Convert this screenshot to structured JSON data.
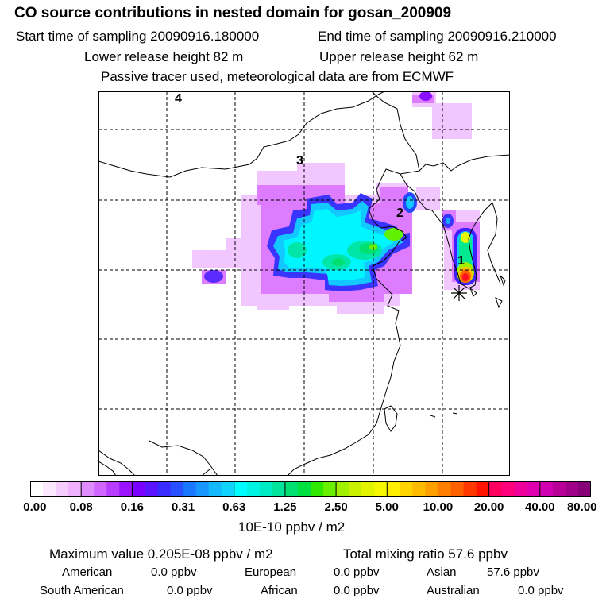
{
  "header": {
    "title": "CO  source contributions in nested domain for gosan_200909",
    "start_label": "Start time of sampling 20090916.180000",
    "end_label": "End time of sampling 20090916.210000",
    "lower_label": "Lower release height   82 m",
    "upper_label": "Upper release height   62 m",
    "note": "Passive tracer used, meteorological data are from ECMWF"
  },
  "chart_data": {
    "type": "heatmap",
    "title": "CO  source contributions in nested domain for gosan_200909",
    "colorbar": {
      "ticks": [
        "0.00",
        "0.08",
        "0.16",
        "0.31",
        "0.63",
        "1.25",
        "2.50",
        "5.00",
        "10.00",
        "20.00",
        "40.00",
        "80.00"
      ],
      "units": "10E-10 ppbv / m2",
      "colors": [
        [
          "#ffffff",
          "#fce8ff",
          "#f6ccff",
          "#eeb0ff"
        ],
        [
          "#e08cff",
          "#d066ff",
          "#b93dff",
          "#9a14ff"
        ],
        [
          "#7a00ff",
          "#5a14ff",
          "#3a2cff",
          "#2850ff"
        ],
        [
          "#1a78ff",
          "#1898ff",
          "#14b8ff",
          "#10d4ff"
        ],
        [
          "#00fcff",
          "#00f4e4",
          "#00ecc4",
          "#00e49c"
        ],
        [
          "#00e070",
          "#00e040",
          "#30e800",
          "#68f000"
        ],
        [
          "#a0f000",
          "#c8f000",
          "#e4f400",
          "#f6f800"
        ],
        [
          "#ffee00",
          "#ffd400",
          "#ffbc00",
          "#ffa000"
        ],
        [
          "#ff8000",
          "#ff6000",
          "#ff3800",
          "#ff1400"
        ],
        [
          "#ff0060",
          "#ff007c",
          "#f0009a",
          "#e000b0"
        ],
        [
          "#d000b0",
          "#b80098",
          "#a00088",
          "#880078"
        ]
      ]
    },
    "region_labels": [
      "1",
      "2",
      "3",
      "4"
    ],
    "station_marker": "gosan",
    "maximum_value": "0.205E-08",
    "maximum_units": "ppbv / m2",
    "total_mixing_ratio": "57.6",
    "total_units": "ppbv",
    "contributions": [
      {
        "region": "American",
        "value": "0.0 ppbv"
      },
      {
        "region": "European",
        "value": "0.0 ppbv"
      },
      {
        "region": "Asian",
        "value": "57.6 ppbv"
      },
      {
        "region": "South American",
        "value": "0.0 ppbv"
      },
      {
        "region": "African",
        "value": "0.0 ppbv"
      },
      {
        "region": "Australian",
        "value": "0.0 ppbv"
      }
    ]
  },
  "footer": {
    "max_label": "Maximum value  0.205E-08 ppbv / m2",
    "total_label": "Total mixing ratio      57.6 ppbv"
  }
}
